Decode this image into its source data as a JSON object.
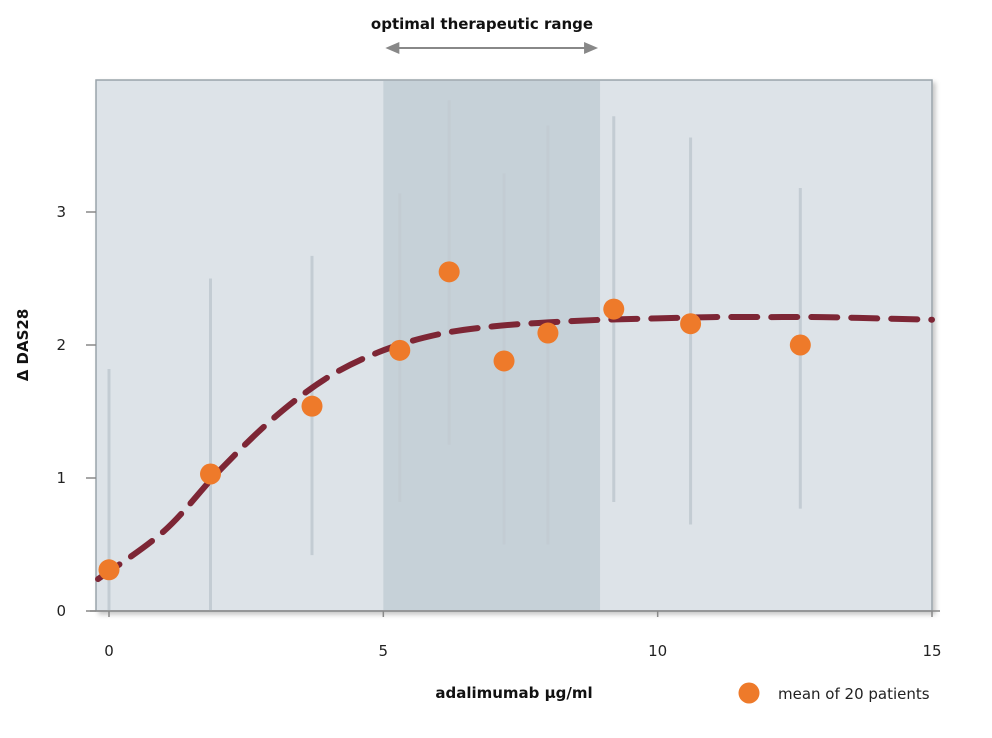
{
  "chart_data": {
    "type": "scatter",
    "xlabel": "adalimumab µg/ml",
    "ylabel": "Δ DAS28",
    "xlim": [
      -0.25,
      15.0
    ],
    "ylim": [
      0,
      4.0
    ],
    "x_ticks": [
      0,
      5,
      10,
      15
    ],
    "y_ticks": [
      0,
      1,
      2,
      3
    ],
    "range_label": "optimal therapeutic range",
    "highlight_range": [
      5.0,
      8.95
    ],
    "legend": {
      "label": "mean of 20 patients",
      "position": "bottom-right"
    },
    "colors": {
      "plot_background": "#dde3e8",
      "highlight_band": "#c6d1d8",
      "marker": "#ee7a2a",
      "fit_curve": "#7d2635",
      "error_bar": "#c3ccd3",
      "axis": "#888888",
      "arrow": "#888888"
    },
    "series": [
      {
        "name": "mean of 20 patients",
        "points": [
          {
            "x": 0.0,
            "y": 0.31,
            "low": 0.0,
            "high": 1.82
          },
          {
            "x": 1.85,
            "y": 1.03,
            "low": 0.0,
            "high": 2.5
          },
          {
            "x": 3.7,
            "y": 1.54,
            "low": 0.42,
            "high": 2.67
          },
          {
            "x": 5.3,
            "y": 1.96,
            "low": 0.82,
            "high": 3.14
          },
          {
            "x": 6.2,
            "y": 2.55,
            "low": 1.25,
            "high": 3.84
          },
          {
            "x": 7.2,
            "y": 1.88,
            "low": 0.5,
            "high": 3.29
          },
          {
            "x": 8.0,
            "y": 2.09,
            "low": 0.5,
            "high": 3.65
          },
          {
            "x": 9.2,
            "y": 2.27,
            "low": 0.82,
            "high": 3.72
          },
          {
            "x": 10.6,
            "y": 2.16,
            "low": 0.65,
            "high": 3.56
          },
          {
            "x": 12.6,
            "y": 2.0,
            "low": 0.77,
            "high": 3.18
          }
        ]
      }
    ],
    "fit_curve": {
      "style": "dashed",
      "points": [
        [
          -0.2,
          0.24
        ],
        [
          1.0,
          0.6
        ],
        [
          2.0,
          1.05
        ],
        [
          3.0,
          1.45
        ],
        [
          4.0,
          1.76
        ],
        [
          5.0,
          1.96
        ],
        [
          6.0,
          2.08
        ],
        [
          7.0,
          2.14
        ],
        [
          8.0,
          2.17
        ],
        [
          9.0,
          2.19
        ],
        [
          10.0,
          2.2
        ],
        [
          11.0,
          2.21
        ],
        [
          12.0,
          2.21
        ],
        [
          13.0,
          2.21
        ],
        [
          14.0,
          2.2
        ],
        [
          15.0,
          2.19
        ]
      ]
    }
  }
}
